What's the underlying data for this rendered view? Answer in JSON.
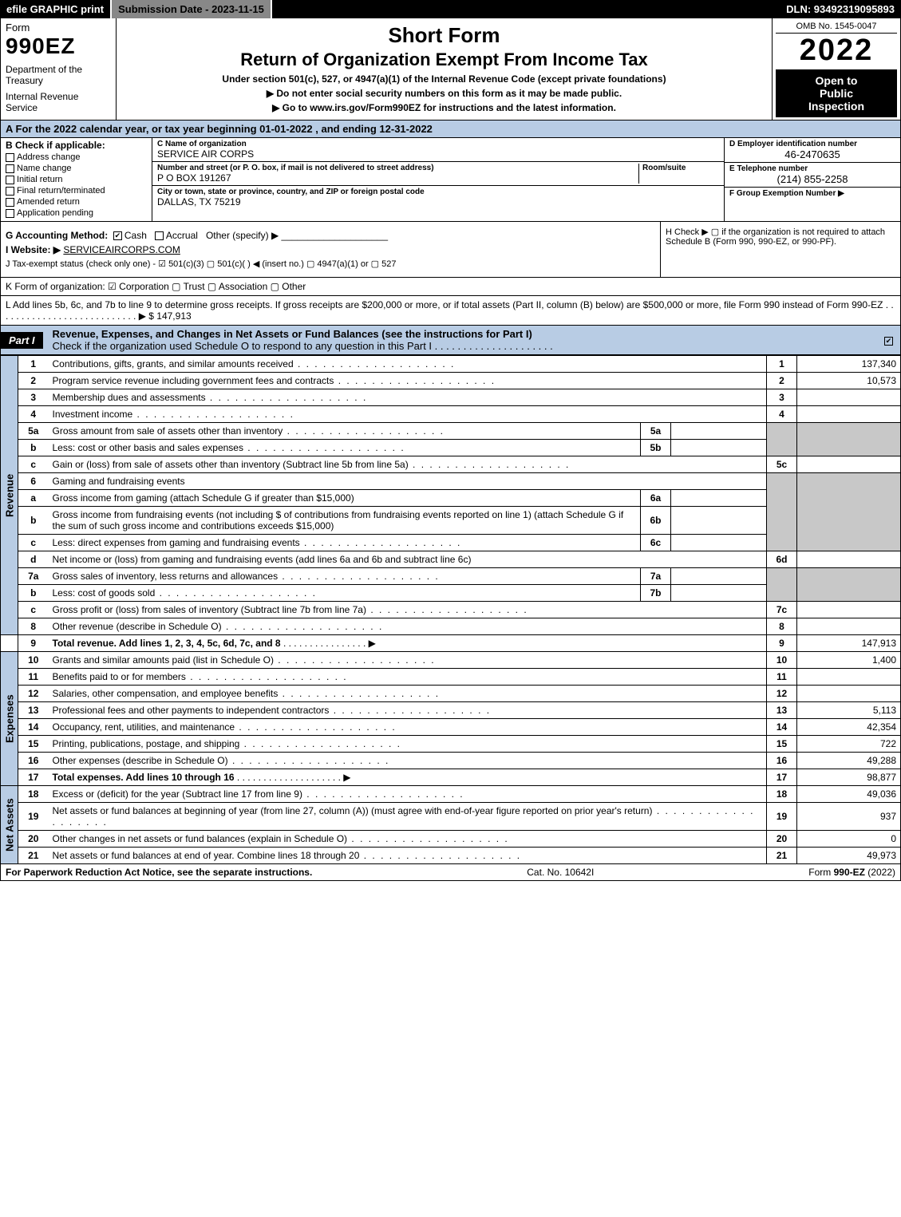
{
  "colors": {
    "header_blue": "#b8cce4",
    "black": "#000000",
    "grey_fill": "#c8c8c8",
    "sub_date_bg": "#888888"
  },
  "topbar": {
    "efile": "efile GRAPHIC print",
    "submission_label": "Submission Date - 2023-11-15",
    "dln": "DLN: 93492319095893"
  },
  "header": {
    "form_word": "Form",
    "form_num": "990EZ",
    "dept1": "Department of the Treasury",
    "dept2": "Internal Revenue Service",
    "title1": "Short Form",
    "title2": "Return of Organization Exempt From Income Tax",
    "sub1": "Under section 501(c), 527, or 4947(a)(1) of the Internal Revenue Code (except private foundations)",
    "sub2": "▶ Do not enter social security numbers on this form as it may be made public.",
    "sub3": "▶ Go to www.irs.gov/Form990EZ for instructions and the latest information.",
    "omb": "OMB No. 1545-0047",
    "year": "2022",
    "open1": "Open to",
    "open2": "Public",
    "open3": "Inspection"
  },
  "line_a": "A  For the 2022 calendar year, or tax year beginning 01-01-2022 , and ending 12-31-2022",
  "section_b": {
    "title": "B  Check if applicable:",
    "opts": [
      "Address change",
      "Name change",
      "Initial return",
      "Final return/terminated",
      "Amended return",
      "Application pending"
    ]
  },
  "section_c": {
    "name_label": "C Name of organization",
    "name": "SERVICE AIR CORPS",
    "street_label": "Number and street (or P. O. box, if mail is not delivered to street address)",
    "street": "P O BOX 191267",
    "room_label": "Room/suite",
    "room": "",
    "city_label": "City or town, state or province, country, and ZIP or foreign postal code",
    "city": "DALLAS, TX  75219"
  },
  "section_d": {
    "ein_label": "D Employer identification number",
    "ein": "46-2470635",
    "phone_label": "E Telephone number",
    "phone": "(214) 855-2258",
    "group_label": "F Group Exemption Number  ▶",
    "group": ""
  },
  "section_g": {
    "label": "G Accounting Method:",
    "cash": "Cash",
    "accrual": "Accrual",
    "other": "Other (specify) ▶"
  },
  "section_h": "H  Check ▶   ▢  if the organization is not required to attach Schedule B (Form 990, 990-EZ, or 990-PF).",
  "section_i": {
    "label": "I Website: ▶",
    "value": "SERVICEAIRCORPS.COM"
  },
  "section_j": "J Tax-exempt status (check only one) -  ☑ 501(c)(3)  ▢ 501(c)(  ) ◀ (insert no.)  ▢ 4947(a)(1) or  ▢ 527",
  "section_k": "K Form of organization:   ☑ Corporation   ▢ Trust   ▢ Association   ▢ Other",
  "section_l": {
    "text": "L Add lines 5b, 6c, and 7b to line 9 to determine gross receipts. If gross receipts are $200,000 or more, or if total assets (Part II, column (B) below) are $500,000 or more, file Form 990 instead of Form 990-EZ  .  .  .  .  .  .  .  .  .  .  .  .  .  .  .  .  .  .  .  .  .  .  .  .  .  .  . ▶",
    "amount": "$ 147,913"
  },
  "part1": {
    "tab": "Part I",
    "title": "Revenue, Expenses, and Changes in Net Assets or Fund Balances (see the instructions for Part I)",
    "check_line": "Check if the organization used Schedule O to respond to any question in this Part I  .  .  .  .  .  .  .  .  .  .  .  .  .  .  .  .  .  .  .  .  .",
    "checked": true
  },
  "side_labels": {
    "revenue": "Revenue",
    "expenses": "Expenses",
    "netassets": "Net Assets"
  },
  "lines": {
    "l1": {
      "n": "1",
      "d": "Contributions, gifts, grants, and similar amounts received",
      "box": "1",
      "v": "137,340"
    },
    "l2": {
      "n": "2",
      "d": "Program service revenue including government fees and contracts",
      "box": "2",
      "v": "10,573"
    },
    "l3": {
      "n": "3",
      "d": "Membership dues and assessments",
      "box": "3",
      "v": ""
    },
    "l4": {
      "n": "4",
      "d": "Investment income",
      "box": "4",
      "v": ""
    },
    "l5a": {
      "n": "5a",
      "d": "Gross amount from sale of assets other than inventory",
      "sub": "5a",
      "sv": ""
    },
    "l5b": {
      "n": "b",
      "d": "Less: cost or other basis and sales expenses",
      "sub": "5b",
      "sv": ""
    },
    "l5c": {
      "n": "c",
      "d": "Gain or (loss) from sale of assets other than inventory (Subtract line 5b from line 5a)",
      "box": "5c",
      "v": ""
    },
    "l6": {
      "n": "6",
      "d": "Gaming and fundraising events"
    },
    "l6a": {
      "n": "a",
      "d": "Gross income from gaming (attach Schedule G if greater than $15,000)",
      "sub": "6a",
      "sv": ""
    },
    "l6b": {
      "n": "b",
      "d": "Gross income from fundraising events (not including $            of contributions from fundraising events reported on line 1) (attach Schedule G if the sum of such gross income and contributions exceeds $15,000)",
      "sub": "6b",
      "sv": ""
    },
    "l6c": {
      "n": "c",
      "d": "Less: direct expenses from gaming and fundraising events",
      "sub": "6c",
      "sv": ""
    },
    "l6d": {
      "n": "d",
      "d": "Net income or (loss) from gaming and fundraising events (add lines 6a and 6b and subtract line 6c)",
      "box": "6d",
      "v": ""
    },
    "l7a": {
      "n": "7a",
      "d": "Gross sales of inventory, less returns and allowances",
      "sub": "7a",
      "sv": ""
    },
    "l7b": {
      "n": "b",
      "d": "Less: cost of goods sold",
      "sub": "7b",
      "sv": ""
    },
    "l7c": {
      "n": "c",
      "d": "Gross profit or (loss) from sales of inventory (Subtract line 7b from line 7a)",
      "box": "7c",
      "v": ""
    },
    "l8": {
      "n": "8",
      "d": "Other revenue (describe in Schedule O)",
      "box": "8",
      "v": ""
    },
    "l9": {
      "n": "9",
      "d": "Total revenue. Add lines 1, 2, 3, 4, 5c, 6d, 7c, and 8",
      "box": "9",
      "v": "147,913",
      "arrow": true,
      "bold": true
    },
    "l10": {
      "n": "10",
      "d": "Grants and similar amounts paid (list in Schedule O)",
      "box": "10",
      "v": "1,400"
    },
    "l11": {
      "n": "11",
      "d": "Benefits paid to or for members",
      "box": "11",
      "v": ""
    },
    "l12": {
      "n": "12",
      "d": "Salaries, other compensation, and employee benefits",
      "box": "12",
      "v": ""
    },
    "l13": {
      "n": "13",
      "d": "Professional fees and other payments to independent contractors",
      "box": "13",
      "v": "5,113"
    },
    "l14": {
      "n": "14",
      "d": "Occupancy, rent, utilities, and maintenance",
      "box": "14",
      "v": "42,354"
    },
    "l15": {
      "n": "15",
      "d": "Printing, publications, postage, and shipping",
      "box": "15",
      "v": "722"
    },
    "l16": {
      "n": "16",
      "d": "Other expenses (describe in Schedule O)",
      "box": "16",
      "v": "49,288"
    },
    "l17": {
      "n": "17",
      "d": "Total expenses. Add lines 10 through 16",
      "box": "17",
      "v": "98,877",
      "arrow": true,
      "bold": true
    },
    "l18": {
      "n": "18",
      "d": "Excess or (deficit) for the year (Subtract line 17 from line 9)",
      "box": "18",
      "v": "49,036"
    },
    "l19": {
      "n": "19",
      "d": "Net assets or fund balances at beginning of year (from line 27, column (A)) (must agree with end-of-year figure reported on prior year's return)",
      "box": "19",
      "v": "937"
    },
    "l20": {
      "n": "20",
      "d": "Other changes in net assets or fund balances (explain in Schedule O)",
      "box": "20",
      "v": "0"
    },
    "l21": {
      "n": "21",
      "d": "Net assets or fund balances at end of year. Combine lines 18 through 20",
      "box": "21",
      "v": "49,973"
    }
  },
  "footer": {
    "left": "For Paperwork Reduction Act Notice, see the separate instructions.",
    "center": "Cat. No. 10642I",
    "right": "Form 990-EZ (2022)"
  }
}
